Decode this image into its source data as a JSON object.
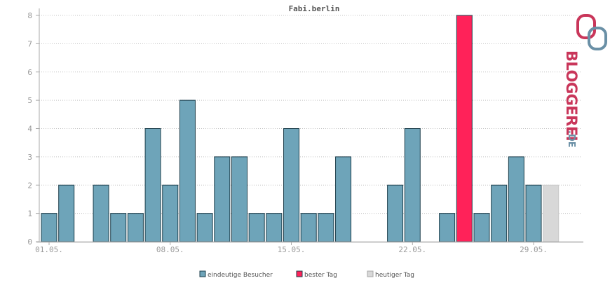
{
  "chart_data": {
    "type": "bar",
    "title": "Fabi.berlin",
    "days": [
      "01.05.",
      "02.05.",
      "03.05.",
      "04.05.",
      "05.05.",
      "06.05.",
      "07.05.",
      "08.05.",
      "09.05.",
      "10.05.",
      "11.05.",
      "12.05.",
      "13.05.",
      "14.05.",
      "15.05.",
      "16.05.",
      "17.05.",
      "18.05.",
      "19.05.",
      "20.05.",
      "21.05.",
      "22.05.",
      "23.05.",
      "24.05.",
      "25.05.",
      "26.05.",
      "27.05.",
      "28.05.",
      "29.05.",
      "30.05."
    ],
    "x_tick_labels": [
      "01.05.",
      "08.05.",
      "15.05.",
      "22.05.",
      "29.05."
    ],
    "values": [
      1,
      2,
      0,
      2,
      1,
      1,
      4,
      2,
      5,
      1,
      3,
      3,
      1,
      1,
      4,
      1,
      1,
      3,
      0,
      0,
      2,
      4,
      0,
      1,
      8,
      1,
      2,
      3,
      2,
      2
    ],
    "categories_type": [
      "normal",
      "normal",
      "normal",
      "normal",
      "normal",
      "normal",
      "normal",
      "normal",
      "normal",
      "normal",
      "normal",
      "normal",
      "normal",
      "normal",
      "normal",
      "normal",
      "normal",
      "normal",
      "normal",
      "normal",
      "normal",
      "normal",
      "normal",
      "normal",
      "best",
      "normal",
      "normal",
      "normal",
      "normal",
      "today"
    ],
    "ylim": [
      0,
      8
    ],
    "yticks": [
      0,
      1,
      2,
      3,
      4,
      5,
      6,
      7,
      8
    ],
    "grid": true,
    "legend_position": "bottom",
    "legend": [
      {
        "key": "normal",
        "label": "eindeutige Besucher"
      },
      {
        "key": "best",
        "label": "bester Tag"
      },
      {
        "key": "today",
        "label": "heutiger Tag"
      }
    ],
    "colors": {
      "normal": "#6ea4b9",
      "best": "#ff2259",
      "today": "#d8d8d8"
    }
  },
  "brand": {
    "text_main": "BLOGGEREI",
    "text_suffix": ".DE",
    "color_main": "#c9365a",
    "color_secondary": "#6a90a6"
  }
}
